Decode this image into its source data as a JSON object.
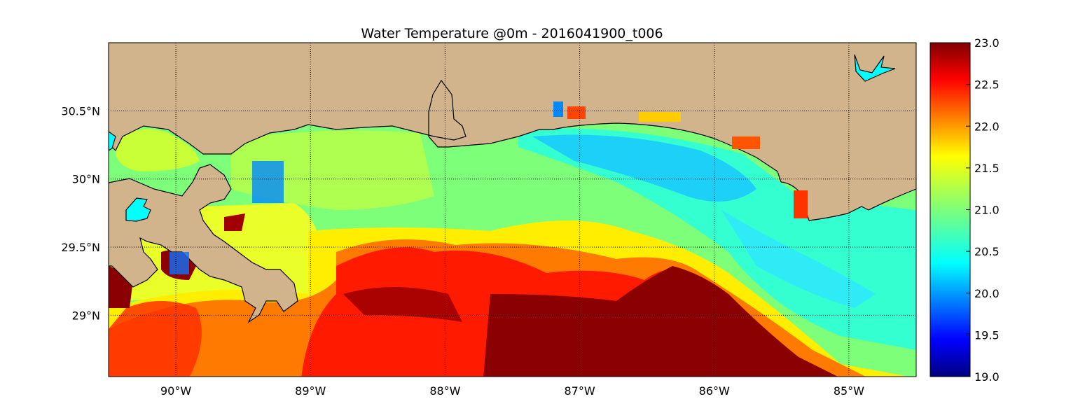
{
  "title": "Water Temperature @0m - 2016041900_t006",
  "map": {
    "lon_range": [
      -90.5,
      -84.5
    ],
    "lat_range": [
      28.55,
      31.0
    ],
    "lon_ticks": [
      -90,
      -89,
      -88,
      -87,
      -86,
      -85
    ],
    "lon_tick_labels": [
      "90°W",
      "89°W",
      "88°W",
      "87°W",
      "86°W",
      "85°W"
    ],
    "lat_ticks": [
      29,
      29.5,
      30,
      30.5
    ],
    "lat_tick_labels": [
      "29°N",
      "29.5°N",
      "30°N",
      "30.5°N"
    ],
    "gridlines": true,
    "land_color": "#d2b48c",
    "lake_color": "#00ffff",
    "coastline_color": "#000000"
  },
  "colorbar": {
    "min": 19.0,
    "max": 23.0,
    "ticks": [
      19.0,
      19.5,
      20.0,
      20.5,
      21.0,
      21.5,
      22.0,
      22.5,
      23.0
    ],
    "tick_labels": [
      "19.0",
      "19.5",
      "20.0",
      "20.5",
      "21.0",
      "21.5",
      "22.0",
      "22.5",
      "23.0"
    ],
    "colormap": "jet",
    "placement": "right"
  }
}
